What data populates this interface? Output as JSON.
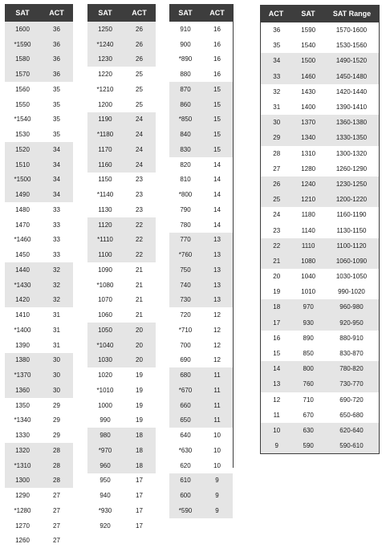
{
  "headers": {
    "sat": "SAT",
    "act": "ACT",
    "range": "SAT Range"
  },
  "col_a": [
    {
      "sat": "1600",
      "act": "36"
    },
    {
      "sat": "*1590",
      "act": "36"
    },
    {
      "sat": "1580",
      "act": "36"
    },
    {
      "sat": "1570",
      "act": "36"
    },
    {
      "sat": "1560",
      "act": "35"
    },
    {
      "sat": "1550",
      "act": "35"
    },
    {
      "sat": "*1540",
      "act": "35"
    },
    {
      "sat": "1530",
      "act": "35"
    },
    {
      "sat": "1520",
      "act": "34"
    },
    {
      "sat": "1510",
      "act": "34"
    },
    {
      "sat": "*1500",
      "act": "34"
    },
    {
      "sat": "1490",
      "act": "34"
    },
    {
      "sat": "1480",
      "act": "33"
    },
    {
      "sat": "1470",
      "act": "33"
    },
    {
      "sat": "*1460",
      "act": "33"
    },
    {
      "sat": "1450",
      "act": "33"
    },
    {
      "sat": "1440",
      "act": "32"
    },
    {
      "sat": "*1430",
      "act": "32"
    },
    {
      "sat": "1420",
      "act": "32"
    },
    {
      "sat": "1410",
      "act": "31"
    },
    {
      "sat": "*1400",
      "act": "31"
    },
    {
      "sat": "1390",
      "act": "31"
    },
    {
      "sat": "1380",
      "act": "30"
    },
    {
      "sat": "*1370",
      "act": "30"
    },
    {
      "sat": "1360",
      "act": "30"
    },
    {
      "sat": "1350",
      "act": "29"
    },
    {
      "sat": "*1340",
      "act": "29"
    },
    {
      "sat": "1330",
      "act": "29"
    },
    {
      "sat": "1320",
      "act": "28"
    },
    {
      "sat": "*1310",
      "act": "28"
    },
    {
      "sat": "1300",
      "act": "28"
    },
    {
      "sat": "1290",
      "act": "27"
    },
    {
      "sat": "*1280",
      "act": "27"
    },
    {
      "sat": "1270",
      "act": "27"
    },
    {
      "sat": "1260",
      "act": "27"
    }
  ],
  "col_b": [
    {
      "sat": "1250",
      "act": "26"
    },
    {
      "sat": "*1240",
      "act": "26"
    },
    {
      "sat": "1230",
      "act": "26"
    },
    {
      "sat": "1220",
      "act": "25"
    },
    {
      "sat": "*1210",
      "act": "25"
    },
    {
      "sat": "1200",
      "act": "25"
    },
    {
      "sat": "1190",
      "act": "24"
    },
    {
      "sat": "*1180",
      "act": "24"
    },
    {
      "sat": "1170",
      "act": "24"
    },
    {
      "sat": "1160",
      "act": "24"
    },
    {
      "sat": "1150",
      "act": "23"
    },
    {
      "sat": "*1140",
      "act": "23"
    },
    {
      "sat": "1130",
      "act": "23"
    },
    {
      "sat": "1120",
      "act": "22"
    },
    {
      "sat": "*1110",
      "act": "22"
    },
    {
      "sat": "1100",
      "act": "22"
    },
    {
      "sat": "1090",
      "act": "21"
    },
    {
      "sat": "*1080",
      "act": "21"
    },
    {
      "sat": "1070",
      "act": "21"
    },
    {
      "sat": "1060",
      "act": "21"
    },
    {
      "sat": "1050",
      "act": "20"
    },
    {
      "sat": "*1040",
      "act": "20"
    },
    {
      "sat": "1030",
      "act": "20"
    },
    {
      "sat": "1020",
      "act": "19"
    },
    {
      "sat": "*1010",
      "act": "19"
    },
    {
      "sat": "1000",
      "act": "19"
    },
    {
      "sat": "990",
      "act": "19"
    },
    {
      "sat": "980",
      "act": "18"
    },
    {
      "sat": "*970",
      "act": "18"
    },
    {
      "sat": "960",
      "act": "18"
    },
    {
      "sat": "950",
      "act": "17"
    },
    {
      "sat": "940",
      "act": "17"
    },
    {
      "sat": "*930",
      "act": "17"
    },
    {
      "sat": "920",
      "act": "17"
    }
  ],
  "col_c": [
    {
      "sat": "910",
      "act": "16"
    },
    {
      "sat": "900",
      "act": "16"
    },
    {
      "sat": "*890",
      "act": "16"
    },
    {
      "sat": "880",
      "act": "16"
    },
    {
      "sat": "870",
      "act": "15"
    },
    {
      "sat": "860",
      "act": "15"
    },
    {
      "sat": "*850",
      "act": "15"
    },
    {
      "sat": "840",
      "act": "15"
    },
    {
      "sat": "830",
      "act": "15"
    },
    {
      "sat": "820",
      "act": "14"
    },
    {
      "sat": "810",
      "act": "14"
    },
    {
      "sat": "*800",
      "act": "14"
    },
    {
      "sat": "790",
      "act": "14"
    },
    {
      "sat": "780",
      "act": "14"
    },
    {
      "sat": "770",
      "act": "13"
    },
    {
      "sat": "*760",
      "act": "13"
    },
    {
      "sat": "750",
      "act": "13"
    },
    {
      "sat": "740",
      "act": "13"
    },
    {
      "sat": "730",
      "act": "13"
    },
    {
      "sat": "720",
      "act": "12"
    },
    {
      "sat": "*710",
      "act": "12"
    },
    {
      "sat": "700",
      "act": "12"
    },
    {
      "sat": "690",
      "act": "12"
    },
    {
      "sat": "680",
      "act": "11"
    },
    {
      "sat": "*670",
      "act": "11"
    },
    {
      "sat": "660",
      "act": "11"
    },
    {
      "sat": "650",
      "act": "11"
    },
    {
      "sat": "640",
      "act": "10"
    },
    {
      "sat": "*630",
      "act": "10"
    },
    {
      "sat": "620",
      "act": "10"
    },
    {
      "sat": "610",
      "act": "9"
    },
    {
      "sat": "600",
      "act": "9"
    },
    {
      "sat": "*590",
      "act": "9"
    }
  ],
  "col_d": [
    {
      "act": "36",
      "sat": "1590",
      "range": "1570-1600"
    },
    {
      "act": "35",
      "sat": "1540",
      "range": "1530-1560"
    },
    {
      "act": "34",
      "sat": "1500",
      "range": "1490-1520"
    },
    {
      "act": "33",
      "sat": "1460",
      "range": "1450-1480"
    },
    {
      "act": "32",
      "sat": "1430",
      "range": "1420-1440"
    },
    {
      "act": "31",
      "sat": "1400",
      "range": "1390-1410"
    },
    {
      "act": "30",
      "sat": "1370",
      "range": "1360-1380"
    },
    {
      "act": "29",
      "sat": "1340",
      "range": "1330-1350"
    },
    {
      "act": "28",
      "sat": "1310",
      "range": "1300-1320"
    },
    {
      "act": "27",
      "sat": "1280",
      "range": "1260-1290"
    },
    {
      "act": "26",
      "sat": "1240",
      "range": "1230-1250"
    },
    {
      "act": "25",
      "sat": "1210",
      "range": "1200-1220"
    },
    {
      "act": "24",
      "sat": "1180",
      "range": "1160-1190"
    },
    {
      "act": "23",
      "sat": "1140",
      "range": "1130-1150"
    },
    {
      "act": "22",
      "sat": "1110",
      "range": "1100-1120"
    },
    {
      "act": "21",
      "sat": "1080",
      "range": "1060-1090"
    },
    {
      "act": "20",
      "sat": "1040",
      "range": "1030-1050"
    },
    {
      "act": "19",
      "sat": "1010",
      "range": "990-1020"
    },
    {
      "act": "18",
      "sat": "970",
      "range": "960-980"
    },
    {
      "act": "17",
      "sat": "930",
      "range": "920-950"
    },
    {
      "act": "16",
      "sat": "890",
      "range": "880-910"
    },
    {
      "act": "15",
      "sat": "850",
      "range": "830-870"
    },
    {
      "act": "14",
      "sat": "800",
      "range": "780-820"
    },
    {
      "act": "13",
      "sat": "760",
      "range": "730-770"
    },
    {
      "act": "12",
      "sat": "710",
      "range": "690-720"
    },
    {
      "act": "11",
      "sat": "670",
      "range": "650-680"
    },
    {
      "act": "10",
      "sat": "630",
      "range": "620-640"
    },
    {
      "act": "9",
      "sat": "590",
      "range": "590-610"
    }
  ],
  "colors": {
    "header_bg": "#3d3d3d",
    "header_text": "#ffffff",
    "shade": "#e5e5e5"
  }
}
